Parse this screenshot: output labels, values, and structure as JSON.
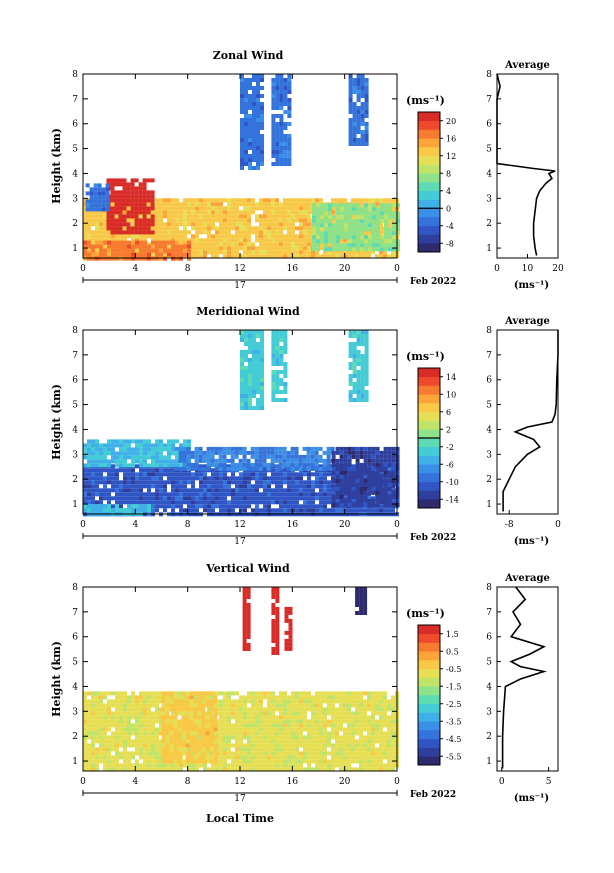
{
  "panels": [
    {
      "title": "Zonal Wind",
      "ylabel": "Height (km)",
      "unit_label": "(ms⁻¹)",
      "cb_ticks": [
        "20",
        "16",
        "12",
        "8",
        "4",
        "0",
        "-4",
        "-8"
      ],
      "cb_range": [
        -10,
        22
      ],
      "cb_zero_line": 0,
      "avg_title": "Average",
      "avg_xticks": [
        "0",
        "10",
        "20"
      ],
      "avg_xlabel": "(ms⁻¹)"
    },
    {
      "title": "Meridional Wind",
      "ylabel": "Height (km)",
      "unit_label": "(ms⁻¹)",
      "cb_ticks": [
        "14",
        "10",
        "6",
        "2",
        "-2",
        "-6",
        "-10",
        "-14"
      ],
      "cb_range": [
        -16,
        16
      ],
      "cb_zero_line": 0,
      "avg_title": "Average",
      "avg_xticks": [
        "-8",
        "0"
      ],
      "avg_xlabel": "(ms⁻¹)"
    },
    {
      "title": "Vertical Wind",
      "ylabel": "Height (km)",
      "unit_label": "(ms⁻¹)",
      "cb_ticks": [
        "1.5",
        "0.5",
        "-0.5",
        "-1.5",
        "-2.5",
        "-3.5",
        "-4.5",
        "-5.5"
      ],
      "cb_range": [
        -6,
        2
      ],
      "cb_zero_line": null,
      "avg_title": "Average",
      "avg_xticks": [
        "0",
        "5"
      ],
      "avg_xlabel": "(ms⁻¹)"
    }
  ],
  "xticks": [
    "0",
    "4",
    "8",
    "12",
    "16",
    "20",
    "0"
  ],
  "yticks": [
    "1",
    "2",
    "3",
    "4",
    "5",
    "6",
    "7",
    "8"
  ],
  "date_day": "17",
  "date_label": "Feb 2022",
  "xlabel_bottom": "Local Time",
  "chart_data": [
    {
      "type": "heatmap",
      "title": "Zonal Wind",
      "ylabel": "Height (km)",
      "xlim_hours": [
        0,
        24
      ],
      "ylim_km": [
        0.6,
        8
      ],
      "colorbar_range": [
        -10,
        22
      ],
      "regions": [
        {
          "hours": [
            0,
            24
          ],
          "km": [
            0.6,
            3.0
          ],
          "value": 13
        },
        {
          "hours": [
            0,
            8
          ],
          "km": [
            0.6,
            1.3
          ],
          "value": 17
        },
        {
          "hours": [
            1.8,
            5.2
          ],
          "km": [
            1.6,
            3.8
          ],
          "value": 22
        },
        {
          "hours": [
            0.2,
            1.8
          ],
          "km": [
            2.6,
            3.6
          ],
          "value": -3
        },
        {
          "hours": [
            17.5,
            24
          ],
          "km": [
            1.0,
            2.8
          ],
          "value": 7
        },
        {
          "hours": [
            12,
            13.6
          ],
          "km": [
            4.2,
            8
          ],
          "value": -3
        },
        {
          "hours": [
            14.4,
            15.8
          ],
          "km": [
            4.4,
            8
          ],
          "value": -3
        },
        {
          "hours": [
            20.3,
            21.7
          ],
          "km": [
            5.2,
            8
          ],
          "value": -3
        }
      ],
      "average_profile": {
        "title": "Average",
        "xlim": [
          0,
          20
        ],
        "height_km": [
          0.7,
          1.0,
          1.5,
          2.0,
          2.5,
          3.0,
          3.3,
          3.6,
          3.8,
          4.0,
          4.1,
          4.2,
          4.4,
          5.0,
          6.0,
          7.0,
          7.5,
          8.0
        ],
        "value": [
          13,
          12.5,
          12,
          12,
          12.5,
          13,
          14,
          16,
          18,
          17,
          19,
          12,
          0,
          0,
          0,
          0,
          1,
          0
        ]
      }
    },
    {
      "type": "heatmap",
      "title": "Meridional Wind",
      "ylabel": "Height (km)",
      "xlim_hours": [
        0,
        24
      ],
      "ylim_km": [
        0.6,
        8
      ],
      "colorbar_range": [
        -16,
        16
      ],
      "regions": [
        {
          "hours": [
            0,
            24
          ],
          "km": [
            0.6,
            2.6
          ],
          "value": -11
        },
        {
          "hours": [
            0,
            5
          ],
          "km": [
            0.6,
            1.0
          ],
          "value": -4
        },
        {
          "hours": [
            0,
            8
          ],
          "km": [
            2.5,
            3.6
          ],
          "value": -4
        },
        {
          "hours": [
            7,
            19
          ],
          "km": [
            2.4,
            3.3
          ],
          "value": -8
        },
        {
          "hours": [
            19,
            24
          ],
          "km": [
            1.0,
            3.3
          ],
          "value": -13
        },
        {
          "hours": [
            12,
            13.6
          ],
          "km": [
            4.8,
            8
          ],
          "value": -3
        },
        {
          "hours": [
            14.4,
            15.6
          ],
          "km": [
            5.2,
            8
          ],
          "value": -3
        },
        {
          "hours": [
            20.3,
            21.7
          ],
          "km": [
            5.2,
            8
          ],
          "value": -3
        }
      ],
      "average_profile": {
        "title": "Average",
        "xlim": [
          -10,
          0
        ],
        "height_km": [
          0.7,
          1.0,
          1.5,
          2.0,
          2.5,
          3.0,
          3.3,
          3.6,
          3.9,
          4.1,
          4.3,
          4.6,
          5.0,
          6.0,
          7.0,
          7.5,
          8.0
        ],
        "value": [
          -9,
          -9,
          -9,
          -8,
          -7,
          -5,
          -3,
          -4,
          -7,
          -5,
          -1,
          -0.5,
          -0.3,
          -0.2,
          0,
          0,
          0
        ]
      }
    },
    {
      "type": "heatmap",
      "title": "Vertical Wind",
      "ylabel": "Height (km)",
      "xlim_hours": [
        0,
        24
      ],
      "ylim_km": [
        0.6,
        8
      ],
      "colorbar_range": [
        -6,
        2
      ],
      "regions": [
        {
          "hours": [
            0,
            24
          ],
          "km": [
            0.6,
            3.8
          ],
          "value": -0.8
        },
        {
          "hours": [
            6,
            10
          ],
          "km": [
            1.0,
            3.8
          ],
          "value": -0.3
        },
        {
          "hours": [
            12.2,
            12.8
          ],
          "km": [
            5.4,
            8
          ],
          "value": 2
        },
        {
          "hours": [
            14.4,
            15.0
          ],
          "km": [
            5.4,
            8
          ],
          "value": 2
        },
        {
          "hours": [
            15.4,
            15.8
          ],
          "km": [
            5.4,
            7.2
          ],
          "value": 2
        },
        {
          "hours": [
            20.8,
            21.6
          ],
          "km": [
            7.0,
            8
          ],
          "value": -6
        }
      ],
      "average_profile": {
        "title": "Average",
        "xlim": [
          -0.5,
          6
        ],
        "height_km": [
          0.7,
          1.0,
          2.0,
          3.0,
          4.0,
          4.3,
          4.6,
          4.8,
          5.0,
          5.3,
          5.6,
          6.0,
          6.5,
          7.0,
          7.5,
          8.0
        ],
        "value": [
          0.1,
          0.1,
          0.1,
          0.2,
          0.4,
          2.0,
          4.5,
          2.0,
          1.0,
          3.0,
          4.5,
          1.0,
          2.0,
          1.2,
          2.5,
          1.5
        ]
      }
    }
  ]
}
